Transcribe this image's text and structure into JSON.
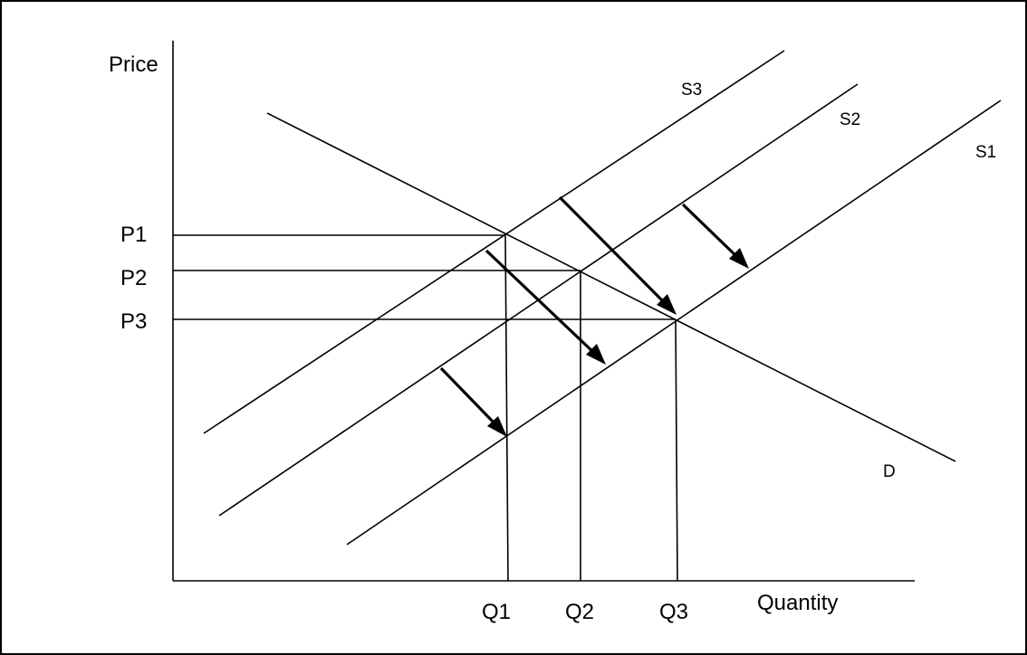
{
  "axes": {
    "y_label": "Price",
    "x_label": "Quantity"
  },
  "prices": [
    {
      "id": "p1",
      "label": "P1"
    },
    {
      "id": "p2",
      "label": "P2"
    },
    {
      "id": "p3",
      "label": "P3"
    }
  ],
  "quantities": [
    {
      "id": "q1",
      "label": "Q1"
    },
    {
      "id": "q2",
      "label": "Q2"
    },
    {
      "id": "q3",
      "label": "Q3"
    }
  ],
  "curves": {
    "s1": "S1",
    "s2": "S2",
    "s3": "S3",
    "d": "D"
  },
  "colors": {
    "line": "#000000",
    "background": "#ffffff",
    "border": "#000000"
  }
}
